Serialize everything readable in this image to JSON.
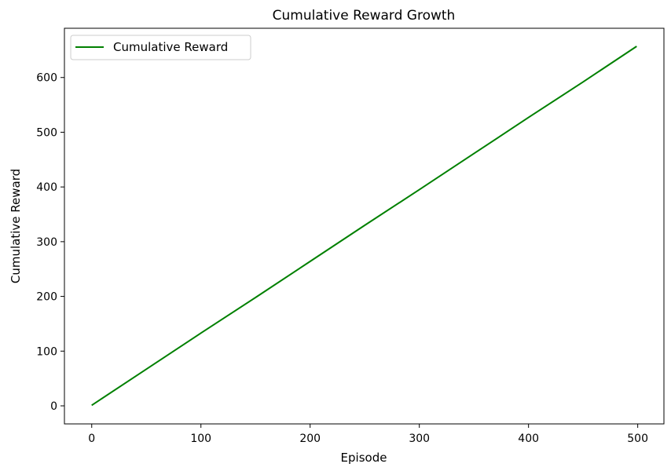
{
  "chart_data": {
    "type": "line",
    "title": "Cumulative Reward Growth",
    "xlabel": "Episode",
    "ylabel": "Cumulative Reward",
    "xlim": [
      -25,
      524
    ],
    "ylim": [
      -33,
      690
    ],
    "xticks": [
      0,
      100,
      200,
      300,
      400,
      500
    ],
    "yticks": [
      0,
      100,
      200,
      300,
      400,
      500,
      600
    ],
    "grid": false,
    "legend": {
      "position": "top-left"
    },
    "series": [
      {
        "name": "Cumulative Reward",
        "color": "#008000",
        "x": [
          0,
          50,
          100,
          150,
          200,
          250,
          300,
          350,
          400,
          450,
          499
        ],
        "y": [
          1,
          67,
          133,
          198,
          264,
          330,
          395,
          461,
          527,
          592,
          657
        ]
      }
    ]
  }
}
